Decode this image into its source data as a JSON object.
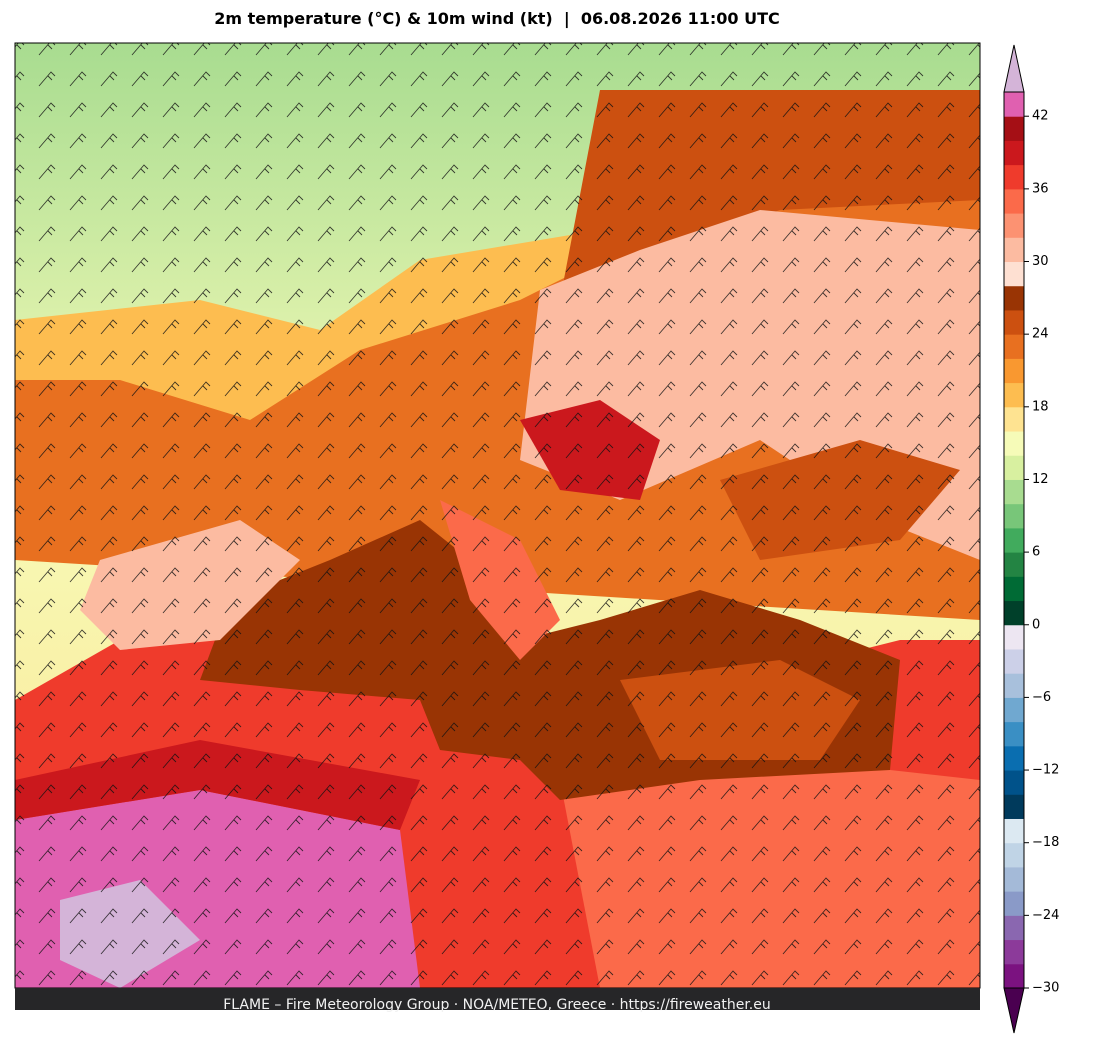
{
  "header": {
    "title": "2m temperature (°C) & 10m wind (kt)  |  06.08.2026 11:00 UTC"
  },
  "footer": {
    "credit": "FLAME – Fire Meteorology Group · NOA/METEO, Greece · https://fireweather.eu"
  },
  "colorbar": {
    "lim": [
      -30,
      44
    ],
    "colors": [
      "#7b1280",
      "#8c3a9a",
      "#8a67b0",
      "#8a9ac8",
      "#a4bad8",
      "#c0d4e6",
      "#dce9f2",
      "#003a5c",
      "#00528a",
      "#0a6eb0",
      "#3a8fc4",
      "#70a8d0",
      "#a8c0dc",
      "#ccd0e8",
      "#ede6f2",
      "#00402a",
      "#006b35",
      "#238443",
      "#41ab5d",
      "#78c679",
      "#a8dc90",
      "#d8f0a0",
      "#f6fbb8",
      "#fee391",
      "#fdbd50",
      "#f99830",
      "#e87020",
      "#cc5010",
      "#993404",
      "#fee0d2",
      "#fcbba1",
      "#fc9272",
      "#fb6a4a",
      "#ef3b2c",
      "#cb181d",
      "#a50f15",
      "#e060b0"
    ],
    "under_color": "#4a0050",
    "over_color": "#d4b4d8",
    "ticks": [
      {
        "value": -30,
        "label": "−30"
      },
      {
        "value": -24,
        "label": "−24"
      },
      {
        "value": -18,
        "label": "−18"
      },
      {
        "value": -12,
        "label": "−12"
      },
      {
        "value": -6,
        "label": "−6"
      },
      0,
      6,
      12,
      18,
      24,
      30,
      36,
      42
    ]
  }
}
